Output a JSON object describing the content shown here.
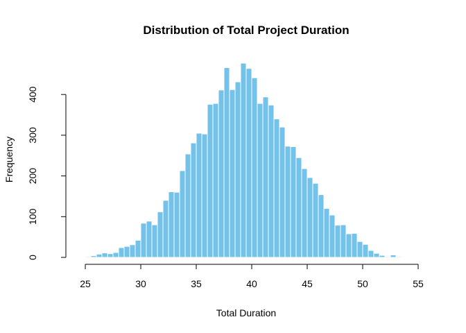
{
  "chart_data": {
    "type": "bar",
    "title": "Distribution of Total Project Duration",
    "xlabel": "Total Duration",
    "ylabel": "Frequency",
    "xlim": [
      25,
      55
    ],
    "ylim": [
      0,
      480
    ],
    "bin_width": 0.5,
    "bin_start": 24.5,
    "x_ticks": [
      "25",
      "30",
      "35",
      "40",
      "45",
      "50",
      "55"
    ],
    "y_ticks": [
      "0",
      "100",
      "200",
      "300",
      "400"
    ],
    "bar_color": "#72C2E9",
    "grid": false,
    "legend": "none",
    "values": [
      1,
      2,
      4,
      8,
      11,
      9,
      12,
      24,
      27,
      31,
      42,
      84,
      89,
      80,
      112,
      140,
      161,
      160,
      213,
      254,
      281,
      305,
      303,
      376,
      378,
      411,
      466,
      412,
      431,
      477,
      464,
      441,
      378,
      394,
      374,
      340,
      320,
      273,
      272,
      245,
      218,
      196,
      182,
      154,
      120,
      104,
      79,
      80,
      58,
      59,
      39,
      32,
      17,
      10,
      5,
      2,
      6,
      2
    ]
  }
}
